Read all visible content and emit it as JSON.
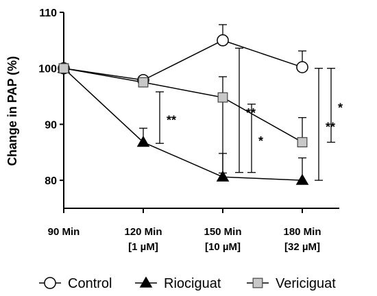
{
  "chart_data": {
    "type": "line",
    "title": "",
    "xlabel": "",
    "ylabel": "Change in PAP (%)",
    "categories": [
      [
        "90 Min"
      ],
      [
        "120 Min",
        "[1 µM]"
      ],
      [
        "150 Min",
        "[10 µM]"
      ],
      [
        "180 Min",
        "[32 µM]"
      ]
    ],
    "ylim": [
      75,
      110
    ],
    "yticks": [
      80,
      90,
      100,
      110
    ],
    "grid": false,
    "legend": "bottom",
    "series": [
      {
        "name": "Control",
        "marker": "circle",
        "fill": "#ffffff",
        "values": [
          100,
          97.9,
          105,
          100.2
        ],
        "err_up": [
          0,
          0.5,
          2.8,
          2.9
        ],
        "err_down": [
          0,
          0.5,
          0,
          0
        ]
      },
      {
        "name": "Riociguat",
        "marker": "triangle",
        "fill": "#000000",
        "values": [
          100,
          86.8,
          80.6,
          80.0
        ],
        "err_up": [
          0,
          2.5,
          4.2,
          4.0
        ],
        "err_down": [
          0,
          0,
          0,
          0
        ]
      },
      {
        "name": "Vericiguat",
        "marker": "square",
        "fill": "#c8c8c8",
        "values": [
          100,
          97.5,
          94.8,
          86.8
        ],
        "err_up": [
          0,
          0,
          3.7,
          4.4
        ],
        "err_down": [
          0,
          0,
          13.5,
          0
        ]
      }
    ],
    "annotations": [
      {
        "text": "**",
        "x_index": 1,
        "y_from": 86.6,
        "y_to": 95.8,
        "offset": 1
      },
      {
        "text": "**",
        "x_index": 2,
        "y_from": 81.4,
        "y_to": 103.6,
        "offset": 1
      },
      {
        "text": "*",
        "x_index": 2,
        "y_from": 81.4,
        "y_to": 93.6,
        "offset": 2
      },
      {
        "text": "**",
        "x_index": 3,
        "y_from": 80.0,
        "y_to": 100.0,
        "offset": 1
      },
      {
        "text": "*",
        "x_index": 3,
        "y_from": 86.8,
        "y_to": 100.0,
        "offset": 2
      }
    ]
  }
}
